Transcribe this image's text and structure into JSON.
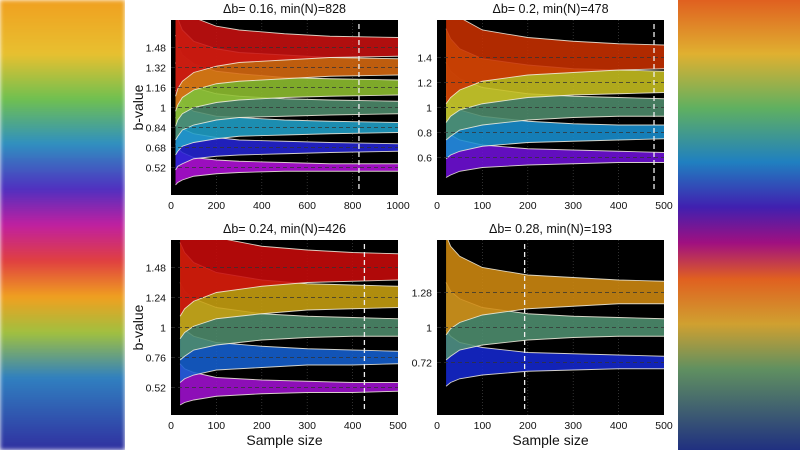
{
  "chart_data": [
    {
      "type": "area",
      "title": "Δb= 0.16, min(N)=828",
      "xlabel": "",
      "ylabel": "b-value",
      "xlim": [
        0,
        1000
      ],
      "ylim": [
        0.3,
        1.7
      ],
      "xticks": [
        "0",
        "200",
        "400",
        "600",
        "800",
        "1000"
      ],
      "yticks": [
        "0.52",
        "0.68",
        "0.84",
        "1",
        "1.16",
        "1.32",
        "1.48"
      ],
      "marker_line_x": 828,
      "x": [
        20,
        30,
        50,
        100,
        200,
        300,
        500,
        700,
        1000
      ],
      "series": [
        {
          "center": 0.52,
          "color": "#b010d8",
          "upper": [
            0.71,
            0.67,
            0.64,
            0.6,
            0.58,
            0.57,
            0.56,
            0.55,
            0.55
          ],
          "lower": [
            0.38,
            0.4,
            0.42,
            0.45,
            0.47,
            0.48,
            0.49,
            0.49,
            0.49
          ]
        },
        {
          "center": 0.68,
          "color": "#2424d4",
          "upper": [
            0.92,
            0.88,
            0.83,
            0.79,
            0.76,
            0.74,
            0.73,
            0.72,
            0.71
          ],
          "lower": [
            0.5,
            0.53,
            0.55,
            0.59,
            0.61,
            0.62,
            0.63,
            0.64,
            0.65
          ]
        },
        {
          "center": 0.84,
          "color": "#20a0c8",
          "upper": [
            1.14,
            1.09,
            1.03,
            0.97,
            0.93,
            0.92,
            0.9,
            0.89,
            0.88
          ],
          "lower": [
            0.62,
            0.65,
            0.69,
            0.72,
            0.75,
            0.77,
            0.78,
            0.79,
            0.8
          ]
        },
        {
          "center": 1.0,
          "color": "#4e8c6c",
          "upper": [
            1.36,
            1.29,
            1.23,
            1.16,
            1.11,
            1.09,
            1.07,
            1.06,
            1.05
          ],
          "lower": [
            0.74,
            0.77,
            0.82,
            0.86,
            0.9,
            0.92,
            0.93,
            0.94,
            0.95
          ]
        },
        {
          "center": 1.16,
          "color": "#90c030",
          "upper": [
            1.58,
            1.5,
            1.42,
            1.35,
            1.29,
            1.27,
            1.24,
            1.23,
            1.22
          ],
          "lower": [
            0.85,
            0.9,
            0.95,
            1.0,
            1.04,
            1.06,
            1.08,
            1.09,
            1.1
          ]
        },
        {
          "center": 1.32,
          "color": "#d86a10",
          "upper": [
            1.79,
            1.71,
            1.62,
            1.53,
            1.47,
            1.44,
            1.42,
            1.4,
            1.39
          ],
          "lower": [
            0.97,
            1.02,
            1.08,
            1.14,
            1.19,
            1.21,
            1.23,
            1.25,
            1.26
          ]
        },
        {
          "center": 1.48,
          "color": "#c81010",
          "upper": [
            2.01,
            1.91,
            1.81,
            1.72,
            1.65,
            1.62,
            1.59,
            1.57,
            1.56
          ],
          "lower": [
            1.09,
            1.15,
            1.21,
            1.28,
            1.33,
            1.36,
            1.38,
            1.4,
            1.41
          ]
        }
      ]
    },
    {
      "type": "area",
      "title": "Δb= 0.2, min(N)=478",
      "xlabel": "",
      "ylabel": "",
      "xlim": [
        0,
        500
      ],
      "ylim": [
        0.3,
        1.7
      ],
      "xticks": [
        "0",
        "100",
        "200",
        "300",
        "400",
        "500"
      ],
      "yticks": [
        "0.6",
        "0.8",
        "1",
        "1.2",
        "1.4"
      ],
      "marker_line_x": 478,
      "x": [
        20,
        30,
        50,
        100,
        200,
        300,
        400,
        500
      ],
      "series": [
        {
          "center": 0.6,
          "color": "#7010d8",
          "upper": [
            0.81,
            0.78,
            0.74,
            0.7,
            0.67,
            0.66,
            0.65,
            0.64
          ],
          "lower": [
            0.44,
            0.46,
            0.49,
            0.52,
            0.54,
            0.55,
            0.56,
            0.56
          ]
        },
        {
          "center": 0.8,
          "color": "#1890d0",
          "upper": [
            1.09,
            1.03,
            0.98,
            0.93,
            0.89,
            0.87,
            0.86,
            0.86
          ],
          "lower": [
            0.59,
            0.62,
            0.65,
            0.69,
            0.72,
            0.73,
            0.74,
            0.75
          ]
        },
        {
          "center": 1.0,
          "color": "#4e8c6c",
          "upper": [
            1.36,
            1.29,
            1.23,
            1.16,
            1.11,
            1.09,
            1.08,
            1.07
          ],
          "lower": [
            0.74,
            0.77,
            0.82,
            0.86,
            0.9,
            0.92,
            0.93,
            0.93
          ]
        },
        {
          "center": 1.2,
          "color": "#c8c020",
          "upper": [
            1.63,
            1.55,
            1.47,
            1.39,
            1.34,
            1.31,
            1.3,
            1.29
          ],
          "lower": [
            0.88,
            0.93,
            0.98,
            1.03,
            1.08,
            1.1,
            1.11,
            1.12
          ]
        },
        {
          "center": 1.4,
          "color": "#c83000",
          "upper": [
            1.9,
            1.81,
            1.72,
            1.62,
            1.56,
            1.53,
            1.51,
            1.5
          ],
          "lower": [
            1.03,
            1.08,
            1.14,
            1.21,
            1.26,
            1.28,
            1.3,
            1.31
          ]
        }
      ]
    },
    {
      "type": "area",
      "title": "Δb= 0.24, min(N)=426",
      "xlabel": "Sample size",
      "ylabel": "b-value",
      "xlim": [
        0,
        500
      ],
      "ylim": [
        0.3,
        1.7
      ],
      "xticks": [
        "0",
        "100",
        "200",
        "300",
        "400",
        "500"
      ],
      "yticks": [
        "0.52",
        "0.76",
        "1",
        "1.24",
        "1.48"
      ],
      "marker_line_x": 426,
      "x": [
        20,
        30,
        50,
        100,
        200,
        300,
        400,
        500
      ],
      "series": [
        {
          "center": 0.52,
          "color": "#a010d0",
          "upper": [
            0.71,
            0.67,
            0.64,
            0.6,
            0.58,
            0.57,
            0.56,
            0.56
          ],
          "lower": [
            0.38,
            0.4,
            0.42,
            0.45,
            0.47,
            0.48,
            0.48,
            0.49
          ]
        },
        {
          "center": 0.76,
          "color": "#1460d0",
          "upper": [
            1.03,
            0.98,
            0.93,
            0.88,
            0.85,
            0.83,
            0.82,
            0.81
          ],
          "lower": [
            0.56,
            0.59,
            0.62,
            0.66,
            0.68,
            0.7,
            0.7,
            0.71
          ]
        },
        {
          "center": 1.0,
          "color": "#4e8c6c",
          "upper": [
            1.36,
            1.29,
            1.23,
            1.16,
            1.11,
            1.09,
            1.08,
            1.07
          ],
          "lower": [
            0.74,
            0.77,
            0.82,
            0.86,
            0.9,
            0.92,
            0.93,
            0.93
          ]
        },
        {
          "center": 1.24,
          "color": "#c8a010",
          "upper": [
            1.68,
            1.6,
            1.52,
            1.44,
            1.38,
            1.35,
            1.34,
            1.33
          ],
          "lower": [
            0.91,
            0.96,
            1.01,
            1.07,
            1.11,
            1.14,
            1.15,
            1.16
          ]
        },
        {
          "center": 1.48,
          "color": "#c80a0a",
          "upper": [
            2.01,
            1.91,
            1.81,
            1.72,
            1.65,
            1.62,
            1.6,
            1.59
          ],
          "lower": [
            1.09,
            1.15,
            1.21,
            1.28,
            1.33,
            1.36,
            1.37,
            1.38
          ]
        }
      ]
    },
    {
      "type": "area",
      "title": "Δb= 0.28, min(N)=193",
      "xlabel": "Sample size",
      "ylabel": "",
      "xlim": [
        0,
        500
      ],
      "ylim": [
        0.3,
        1.7
      ],
      "xticks": [
        "0",
        "100",
        "200",
        "300",
        "400",
        "500"
      ],
      "yticks": [
        "0.72",
        "1",
        "1.28"
      ],
      "marker_line_x": 193,
      "x": [
        20,
        30,
        50,
        100,
        200,
        300,
        400,
        500
      ],
      "series": [
        {
          "center": 0.72,
          "color": "#1428d0",
          "upper": [
            0.98,
            0.93,
            0.88,
            0.84,
            0.8,
            0.79,
            0.78,
            0.77
          ],
          "lower": [
            0.53,
            0.56,
            0.59,
            0.62,
            0.65,
            0.66,
            0.67,
            0.67
          ]
        },
        {
          "center": 1.0,
          "color": "#4e9070",
          "upper": [
            1.36,
            1.29,
            1.23,
            1.16,
            1.11,
            1.09,
            1.08,
            1.07
          ],
          "lower": [
            0.74,
            0.77,
            0.82,
            0.86,
            0.9,
            0.92,
            0.93,
            0.93
          ]
        },
        {
          "center": 1.28,
          "color": "#d08a10",
          "upper": [
            1.74,
            1.65,
            1.57,
            1.48,
            1.42,
            1.4,
            1.38,
            1.37
          ],
          "lower": [
            0.94,
            0.99,
            1.04,
            1.1,
            1.15,
            1.17,
            1.19,
            1.19
          ]
        }
      ]
    }
  ]
}
